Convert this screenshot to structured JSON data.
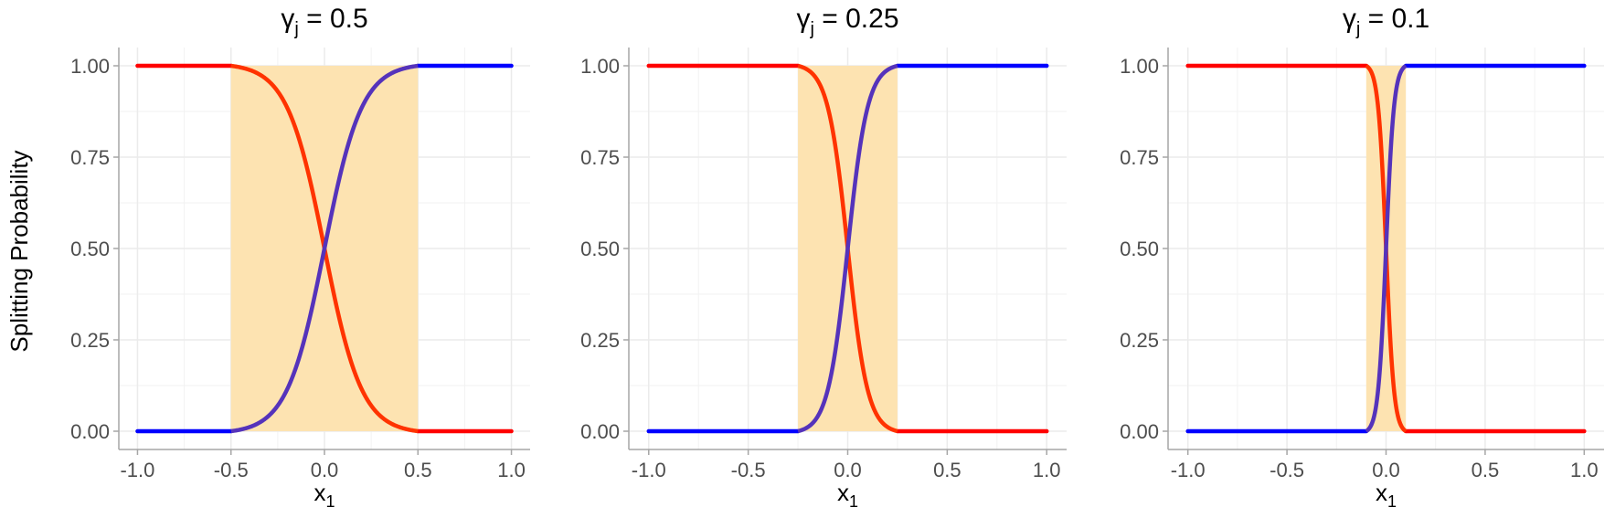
{
  "figure": {
    "ylabel": "Splitting Probability"
  },
  "chart_data": [
    {
      "type": "line",
      "title": "γj = 0.5",
      "title_parts": {
        "symbol": "γ",
        "subscript": "j",
        "rest": " = 0.5"
      },
      "gamma": 0.5,
      "xlabel": "x1",
      "xlabel_parts": {
        "base": "x",
        "subscript": "1"
      },
      "ylabel": "Splitting Probability",
      "xlim": [
        -1.0,
        1.0
      ],
      "ylim": [
        0.0,
        1.0
      ],
      "x_ticks": [
        "-1.0",
        "-0.5",
        "0.0",
        "0.5",
        "1.0"
      ],
      "y_ticks": [
        "0.00",
        "0.25",
        "0.50",
        "0.75",
        "1.00"
      ],
      "grid": true,
      "shaded_region": {
        "x_from": -0.5,
        "x_to": 0.5,
        "color": "#fde3b1"
      },
      "series": [
        {
          "curve": "decreasing",
          "color_outside": "#ff0000",
          "color_inside": "#ff3300"
        },
        {
          "curve": "increasing",
          "color_outside": "#0000ff",
          "color_inside": "#5533bb"
        }
      ],
      "points": {
        "x": [
          -1.0,
          -0.5,
          -0.4,
          -0.3,
          -0.2,
          -0.1,
          0.0,
          0.1,
          0.2,
          0.3,
          0.4,
          0.5,
          1.0
        ],
        "decreasing": [
          1.0,
          1.0,
          0.99,
          0.95,
          0.85,
          0.7,
          0.5,
          0.3,
          0.15,
          0.05,
          0.01,
          0.0,
          0.0
        ],
        "increasing": [
          0.0,
          0.0,
          0.01,
          0.05,
          0.15,
          0.3,
          0.5,
          0.7,
          0.85,
          0.95,
          0.99,
          1.0,
          1.0
        ]
      }
    },
    {
      "type": "line",
      "title": "γj = 0.25",
      "title_parts": {
        "symbol": "γ",
        "subscript": "j",
        "rest": " = 0.25"
      },
      "gamma": 0.25,
      "xlabel": "x1",
      "xlabel_parts": {
        "base": "x",
        "subscript": "1"
      },
      "xlim": [
        -1.0,
        1.0
      ],
      "ylim": [
        0.0,
        1.0
      ],
      "x_ticks": [
        "-1.0",
        "-0.5",
        "0.0",
        "0.5",
        "1.0"
      ],
      "y_ticks": [
        "0.00",
        "0.25",
        "0.50",
        "0.75",
        "1.00"
      ],
      "grid": true,
      "shaded_region": {
        "x_from": -0.25,
        "x_to": 0.25,
        "color": "#fde3b1"
      },
      "series": [
        {
          "curve": "decreasing",
          "color_outside": "#ff0000",
          "color_inside": "#ff3300"
        },
        {
          "curve": "increasing",
          "color_outside": "#0000ff",
          "color_inside": "#5533bb"
        }
      ],
      "points": {
        "x": [
          -1.0,
          -0.25,
          -0.2,
          -0.15,
          -0.1,
          -0.05,
          0.0,
          0.05,
          0.1,
          0.15,
          0.2,
          0.25,
          1.0
        ],
        "decreasing": [
          1.0,
          1.0,
          0.99,
          0.95,
          0.85,
          0.7,
          0.5,
          0.3,
          0.15,
          0.05,
          0.01,
          0.0,
          0.0
        ],
        "increasing": [
          0.0,
          0.0,
          0.01,
          0.05,
          0.15,
          0.3,
          0.5,
          0.7,
          0.85,
          0.95,
          0.99,
          1.0,
          1.0
        ]
      }
    },
    {
      "type": "line",
      "title": "γj = 0.1",
      "title_parts": {
        "symbol": "γ",
        "subscript": "j",
        "rest": " = 0.1"
      },
      "gamma": 0.1,
      "xlabel": "x1",
      "xlabel_parts": {
        "base": "x",
        "subscript": "1"
      },
      "xlim": [
        -1.0,
        1.0
      ],
      "ylim": [
        0.0,
        1.0
      ],
      "x_ticks": [
        "-1.0",
        "-0.5",
        "0.0",
        "0.5",
        "1.0"
      ],
      "y_ticks": [
        "0.00",
        "0.25",
        "0.50",
        "0.75",
        "1.00"
      ],
      "grid": true,
      "shaded_region": {
        "x_from": -0.1,
        "x_to": 0.1,
        "color": "#fde3b1"
      },
      "series": [
        {
          "curve": "decreasing",
          "color_outside": "#ff0000",
          "color_inside": "#ff3300"
        },
        {
          "curve": "increasing",
          "color_outside": "#0000ff",
          "color_inside": "#5533bb"
        }
      ],
      "points": {
        "x": [
          -1.0,
          -0.1,
          -0.08,
          -0.06,
          -0.04,
          -0.02,
          0.0,
          0.02,
          0.04,
          0.06,
          0.08,
          0.1,
          1.0
        ],
        "decreasing": [
          1.0,
          1.0,
          0.99,
          0.95,
          0.85,
          0.7,
          0.5,
          0.3,
          0.15,
          0.05,
          0.01,
          0.0,
          0.0
        ],
        "increasing": [
          0.0,
          0.0,
          0.01,
          0.05,
          0.15,
          0.3,
          0.5,
          0.7,
          0.85,
          0.95,
          0.99,
          1.0,
          1.0
        ]
      }
    }
  ]
}
